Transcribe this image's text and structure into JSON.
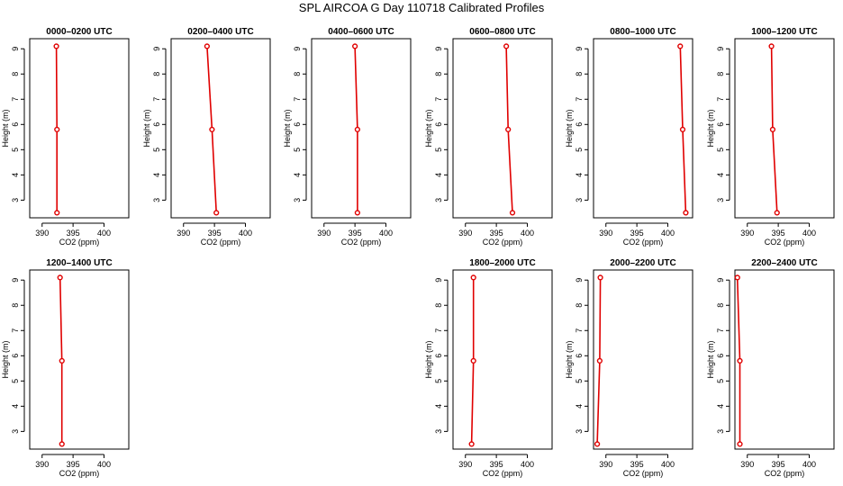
{
  "title": "SPL AIRCOA G  Day 110718  Calibrated Profiles",
  "chart_data": {
    "type": "line",
    "xlabel": "CO2 (ppm)",
    "ylabel": "Height (m)",
    "xlim": [
      388,
      404
    ],
    "ylim": [
      2.3,
      9.4
    ],
    "xticks": [
      "390",
      "395",
      "400"
    ],
    "yticks": [
      "3",
      "4",
      "5",
      "6",
      "7",
      "8",
      "9"
    ],
    "line_color": "#e00000",
    "panels": [
      {
        "title": "0000–0200 UTC",
        "points": [
          {
            "x": 392.3,
            "y": 9.1
          },
          {
            "x": 392.4,
            "y": 5.8
          },
          {
            "x": 392.4,
            "y": 2.5
          }
        ]
      },
      {
        "title": "0200–0400 UTC",
        "points": [
          {
            "x": 393.8,
            "y": 9.1
          },
          {
            "x": 394.6,
            "y": 5.8
          },
          {
            "x": 395.3,
            "y": 2.5
          }
        ]
      },
      {
        "title": "0400–0600 UTC",
        "points": [
          {
            "x": 395.0,
            "y": 9.1
          },
          {
            "x": 395.4,
            "y": 5.8
          },
          {
            "x": 395.4,
            "y": 2.5
          }
        ]
      },
      {
        "title": "0600–0800 UTC",
        "points": [
          {
            "x": 396.6,
            "y": 9.1
          },
          {
            "x": 396.9,
            "y": 5.8
          },
          {
            "x": 397.6,
            "y": 2.5
          }
        ]
      },
      {
        "title": "0800–1000 UTC",
        "points": [
          {
            "x": 402.0,
            "y": 9.1
          },
          {
            "x": 402.4,
            "y": 5.8
          },
          {
            "x": 402.9,
            "y": 2.5
          }
        ]
      },
      {
        "title": "1000–1200 UTC",
        "points": [
          {
            "x": 393.9,
            "y": 9.1
          },
          {
            "x": 394.1,
            "y": 5.8
          },
          {
            "x": 394.8,
            "y": 2.5
          }
        ]
      },
      {
        "title": "1200–1400 UTC",
        "points": [
          {
            "x": 392.9,
            "y": 9.1
          },
          {
            "x": 393.2,
            "y": 5.8
          },
          {
            "x": 393.2,
            "y": 2.5
          }
        ]
      },
      null,
      null,
      {
        "title": "1800–2000 UTC",
        "points": [
          {
            "x": 391.3,
            "y": 9.1
          },
          {
            "x": 391.3,
            "y": 5.8
          },
          {
            "x": 391.0,
            "y": 2.5
          }
        ]
      },
      {
        "title": "2000–2200 UTC",
        "points": [
          {
            "x": 389.1,
            "y": 9.1
          },
          {
            "x": 389.0,
            "y": 5.8
          },
          {
            "x": 388.6,
            "y": 2.5
          }
        ]
      },
      {
        "title": "2200–2400 UTC",
        "points": [
          {
            "x": 388.4,
            "y": 9.1
          },
          {
            "x": 388.8,
            "y": 5.8
          },
          {
            "x": 388.8,
            "y": 2.5
          }
        ]
      }
    ]
  }
}
